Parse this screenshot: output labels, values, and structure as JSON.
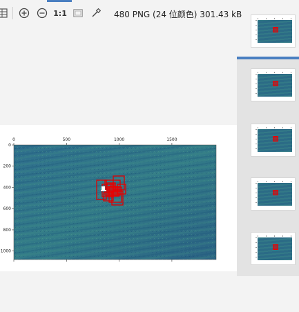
{
  "toolbar": {
    "zoom_ratio_label": "1:1",
    "image_info": "480 PNG (24 位颜色) 301.43 kB"
  },
  "icons": {
    "grid": "grid-icon",
    "zoom_in": "zoom-in-icon",
    "zoom_out": "zoom-out-icon",
    "fit": "fit-to-window-icon",
    "picker": "eyedropper-icon"
  },
  "colors": {
    "accent": "#4a7fc1",
    "box": "#e00000",
    "plot": "#2e6f8a"
  },
  "main_image": {
    "x_ticks": [
      "0",
      "500",
      "1000",
      "1500"
    ],
    "y_ticks": [
      "0",
      "200",
      "400",
      "600",
      "800",
      "1000"
    ]
  },
  "thumbnails": [
    {
      "id": "thumbnail-1"
    },
    {
      "id": "thumbnail-2"
    },
    {
      "id": "thumbnail-3"
    },
    {
      "id": "thumbnail-4"
    },
    {
      "id": "thumbnail-5"
    }
  ]
}
